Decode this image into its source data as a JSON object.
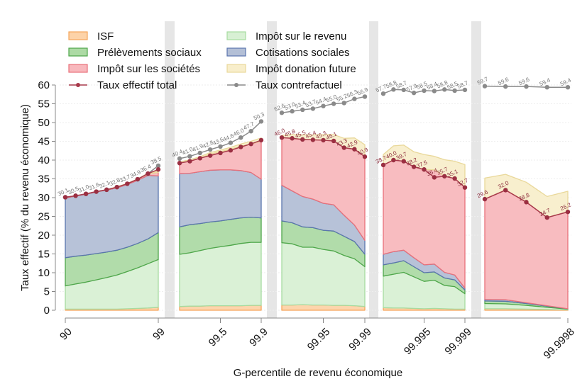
{
  "chart_data": {
    "type": "area",
    "title": "",
    "xlabel": "G-percentile de revenu économique",
    "ylabel": "Taux effectif (% du revenu économique)",
    "ylim": [
      0,
      60
    ],
    "yticks": [
      0,
      5,
      10,
      15,
      20,
      25,
      30,
      35,
      40,
      45,
      50,
      55,
      60
    ],
    "grid": true,
    "legend_position": "top-left",
    "legend": [
      {
        "key": "isf",
        "label": "ISF",
        "kind": "area",
        "fill": "#fdd3a8",
        "stroke": "#f5a55a"
      },
      {
        "key": "ir",
        "label": "Impôt sur le revenu",
        "kind": "area",
        "fill": "#d8f0d4",
        "stroke": "#a6dba0"
      },
      {
        "key": "ps",
        "label": "Prélèvements sociaux",
        "kind": "area",
        "fill": "#addaa5",
        "stroke": "#4ea64a"
      },
      {
        "key": "cs",
        "label": "Cotisations sociales",
        "kind": "area",
        "fill": "#b3bfd6",
        "stroke": "#5a75ad"
      },
      {
        "key": "is",
        "label": "Impôt sur les sociétés",
        "kind": "area",
        "fill": "#f8b8bd",
        "stroke": "#e8707a"
      },
      {
        "key": "don",
        "label": "Impôt donation future",
        "kind": "area",
        "fill": "#f8eecb",
        "stroke": "#e9d89a"
      },
      {
        "key": "total",
        "label": "Taux effectif total",
        "kind": "line",
        "stroke": "#a8394b"
      },
      {
        "key": "cf",
        "label": "Taux contrefactuel",
        "kind": "line",
        "stroke": "#8a8a8a"
      }
    ],
    "xticks": [
      "90",
      "99",
      "99.5",
      "99.9",
      "99.95",
      "99.99",
      "99.995",
      "99.999",
      "99.9998"
    ],
    "panels": [
      {
        "name": "P90-P99",
        "tick_positions": [
          0,
          1
        ],
        "tick_labels": [
          "90",
          "99"
        ],
        "isf": [
          0.3,
          0.3,
          0.3,
          0.3,
          0.3,
          0.3,
          0.4,
          0.5,
          0.6,
          0.8
        ],
        "ir": [
          6.2,
          6.7,
          7.2,
          7.8,
          8.4,
          9.1,
          9.9,
          10.8,
          11.8,
          12.7
        ],
        "ps": [
          7.5,
          7.4,
          7.2,
          7.0,
          6.8,
          6.6,
          6.5,
          6.5,
          6.6,
          7.2
        ],
        "cs": [
          15.9,
          16.0,
          16.2,
          16.4,
          16.5,
          16.6,
          16.7,
          16.8,
          16.9,
          15.1
        ],
        "is": [
          0.2,
          0.1,
          0.1,
          0.1,
          0.1,
          0.2,
          0.2,
          0.3,
          0.4,
          0.9
        ],
        "don": [
          0.0,
          0.0,
          0.0,
          0.0,
          0.0,
          0.1,
          0.1,
          0.1,
          0.2,
          0.3
        ],
        "total": [
          30.1,
          30.5,
          31.0,
          31.6,
          32.1,
          32.8,
          33.7,
          34.9,
          36.4,
          37.5
        ],
        "cf": [
          30.1,
          30.5,
          31.0,
          31.6,
          32.1,
          32.8,
          33.7,
          34.9,
          36.4,
          38.5
        ],
        "total_labels": [],
        "cf_labels": [
          "30.1",
          "30.5",
          "31.0",
          "31.6",
          "32.1",
          "32.8",
          "33.7",
          "34.9",
          "36.4",
          "38.5"
        ]
      },
      {
        "name": "P99-P99.9",
        "tick_positions": [
          0.5,
          1
        ],
        "tick_labels": [
          "99.5",
          "99.9"
        ],
        "isf": [
          1.0,
          1.1,
          1.1,
          1.2,
          1.2,
          1.2,
          1.2,
          1.3,
          1.3
        ],
        "ir": [
          13.9,
          14.2,
          14.8,
          15.3,
          15.7,
          16.1,
          16.6,
          16.8,
          16.8
        ],
        "ps": [
          7.3,
          7.5,
          7.2,
          7.0,
          6.9,
          6.9,
          6.8,
          6.7,
          6.5
        ],
        "cs": [
          14.2,
          13.7,
          13.8,
          13.8,
          13.6,
          13.2,
          12.6,
          11.9,
          10.3
        ],
        "is": [
          2.8,
          3.2,
          3.6,
          4.3,
          4.8,
          5.5,
          6.5,
          7.6,
          10.1
        ],
        "don": [
          0.3,
          0.4,
          0.4,
          0.4,
          0.5,
          0.5,
          0.6,
          0.7,
          0.9
        ],
        "total": [
          39.2,
          39.7,
          40.5,
          41.2,
          41.9,
          42.6,
          43.5,
          44.3,
          45.3
        ],
        "cf": [
          40.4,
          41.0,
          41.9,
          42.8,
          43.6,
          44.6,
          46.0,
          47.7,
          50.3
        ],
        "total_labels": [],
        "cf_labels": [
          "40.4",
          "41.0",
          "41.9",
          "42.8",
          "43.6",
          "44.6",
          "46.0",
          "47.7",
          "50.3"
        ]
      },
      {
        "name": "P99.9-P99.99",
        "tick_positions": [
          0.5,
          1
        ],
        "tick_labels": [
          "99.95",
          "99.99"
        ],
        "isf": [
          1.4,
          1.4,
          1.5,
          1.4,
          1.4,
          1.3,
          1.3,
          1.2,
          1.0
        ],
        "ir": [
          16.6,
          16.3,
          15.3,
          15.4,
          14.8,
          14.5,
          13.3,
          12.5,
          10.6
        ],
        "ps": [
          5.8,
          5.6,
          5.4,
          5.2,
          5.1,
          5.3,
          5.1,
          4.6,
          3.3
        ],
        "cs": [
          9.5,
          8.5,
          8.1,
          7.6,
          7.2,
          7.0,
          5.6,
          4.4,
          3.7
        ],
        "is": [
          12.7,
          14.0,
          15.2,
          15.8,
          16.8,
          17.0,
          18.0,
          20.2,
          22.3
        ],
        "don": [
          0.6,
          1.0,
          1.2,
          1.3,
          1.5,
          1.7,
          2.5,
          3.0,
          3.2
        ],
        "total": [
          46.0,
          45.8,
          45.5,
          45.4,
          45.3,
          45.1,
          43.3,
          42.9,
          40.9
        ],
        "cf": [
          52.6,
          53.0,
          53.4,
          53.7,
          54.4,
          55.0,
          55.2,
          56.3,
          56.9
        ],
        "total_labels": [
          "46.0",
          "45.8",
          "45.5",
          "45.4",
          "45.3",
          "45.1",
          "43.3",
          "42.9",
          "40.9"
        ],
        "cf_labels": [
          "52.6",
          "53.0",
          "53.4",
          "53.7",
          "54.4",
          "55.0",
          "55.2",
          "56.3",
          "56.9"
        ]
      },
      {
        "name": "P99.99-P99.999",
        "tick_positions": [
          0.5,
          1
        ],
        "tick_labels": [
          "99.995",
          "99.999"
        ],
        "isf": [
          0.7,
          0.6,
          0.6,
          0.5,
          0.4,
          0.5,
          0.4,
          0.3,
          0.3
        ],
        "ir": [
          8.4,
          9.0,
          9.5,
          8.4,
          7.3,
          7.5,
          6.2,
          6.0,
          4.1
        ],
        "ps": [
          3.0,
          3.0,
          3.1,
          2.7,
          2.3,
          2.2,
          2.0,
          1.8,
          1.0
        ],
        "cs": [
          2.8,
          3.0,
          2.8,
          2.4,
          2.1,
          2.1,
          1.5,
          1.3,
          0.5
        ],
        "is": [
          23.8,
          24.4,
          23.7,
          24.2,
          25.4,
          25.1,
          25.6,
          25.7,
          26.8
        ],
        "don": [
          2.8,
          3.8,
          4.3,
          4.0,
          4.0,
          3.6,
          4.4,
          4.6,
          6.1
        ],
        "total": [
          38.7,
          40.0,
          39.7,
          38.2,
          37.5,
          35.4,
          35.7,
          35.1,
          32.7
        ],
        "cf": [
          57.7,
          58.8,
          58.7,
          57.9,
          58.5,
          58.4,
          58.8,
          58.5,
          58.7
        ],
        "total_labels": [
          "38.7",
          "40.0",
          "39.7",
          "38.2",
          "37.5",
          "35.4",
          "35.7",
          "35.1",
          "32.7"
        ],
        "cf_labels": [
          "57.7",
          "58.8",
          "58.7",
          "57.9",
          "58.5",
          "58.4",
          "58.8",
          "58.5",
          "58.7"
        ]
      },
      {
        "name": "P99.999-P99.9998",
        "tick_positions": [
          1
        ],
        "tick_labels": [
          "99.9998"
        ],
        "isf": [
          0.4,
          0.4,
          0.3,
          0.2,
          0.1
        ],
        "ir": [
          1.4,
          1.3,
          1.0,
          0.6,
          0.2
        ],
        "ps": [
          0.7,
          0.7,
          0.5,
          0.3,
          0.1
        ],
        "cs": [
          0.4,
          0.4,
          0.2,
          0.1,
          0.0
        ],
        "is": [
          26.7,
          29.2,
          26.8,
          23.5,
          25.8
        ],
        "don": [
          5.6,
          4.2,
          5.3,
          5.6,
          5.5
        ],
        "total": [
          29.6,
          32.0,
          28.8,
          24.7,
          26.2
        ],
        "cf": [
          59.7,
          59.6,
          59.6,
          59.4,
          59.4
        ],
        "total_labels": [
          "29.6",
          "32.0",
          "28.8",
          "24.7",
          "26.2"
        ],
        "cf_labels": [
          "59.7",
          "59.6",
          "59.6",
          "59.4",
          "59.4"
        ]
      }
    ]
  }
}
